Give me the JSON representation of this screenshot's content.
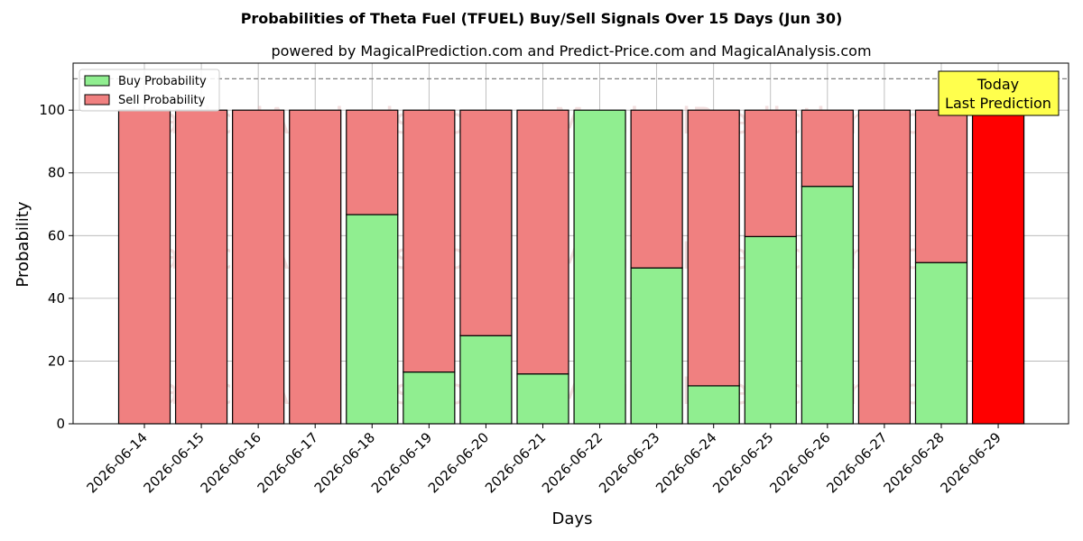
{
  "chart_data": {
    "type": "bar",
    "title": "Probabilities of Theta Fuel (TFUEL) Buy/Sell Signals Over 15 Days (Jun 30)",
    "subtitle": "powered by MagicalPrediction.com and Predict-Price.com and MagicalAnalysis.com",
    "xlabel": "Days",
    "ylabel": "Probability",
    "ylim": [
      0,
      115
    ],
    "yticks": [
      0,
      20,
      40,
      60,
      80,
      100
    ],
    "grid": true,
    "stacked": true,
    "legend_position": "top-left",
    "categories": [
      "2026-06-14",
      "2026-06-15",
      "2026-06-16",
      "2026-06-17",
      "2026-06-18",
      "2026-06-19",
      "2026-06-20",
      "2026-06-21",
      "2026-06-22",
      "2026-06-23",
      "2026-06-24",
      "2026-06-25",
      "2026-06-26",
      "2026-06-27",
      "2026-06-28",
      "2026-06-29"
    ],
    "series": [
      {
        "name": "Buy Probability",
        "color": "#90ee90",
        "values": [
          0,
          0,
          0,
          0,
          66.7,
          16.5,
          28.1,
          15.9,
          100,
          49.7,
          12.1,
          59.7,
          75.7,
          0,
          51.4,
          0
        ]
      },
      {
        "name": "Sell Probability",
        "color": "#f08080",
        "values": [
          100,
          100,
          100,
          100,
          33.3,
          83.5,
          71.9,
          84.1,
          0,
          50.3,
          87.9,
          40.3,
          24.3,
          100,
          48.6,
          100
        ]
      }
    ],
    "highlight": {
      "category": "2026-06-29",
      "color": "#ff0000"
    },
    "reference_line": {
      "y": 110,
      "style": "dashed"
    },
    "annotation": {
      "lines": [
        "Today",
        "Last Prediction"
      ],
      "background": "#ffff4d"
    },
    "watermarks": [
      "MagicalAnalysis.com",
      "MagicalPrediction.com"
    ]
  }
}
